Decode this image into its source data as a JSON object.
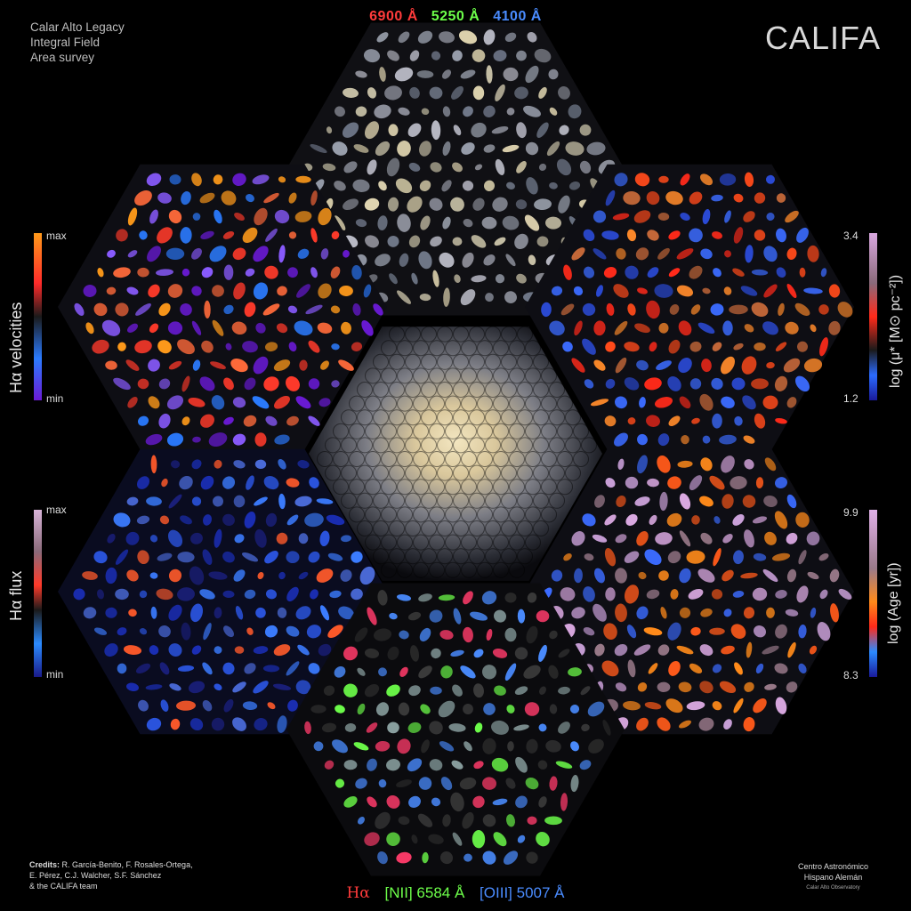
{
  "survey": {
    "lines": [
      "Calar Alto Legacy",
      "Integral Field",
      "Area survey"
    ]
  },
  "brand": "CALIFA",
  "wavelengths": [
    {
      "label": "6900 Å",
      "color": "#ff3b3b"
    },
    {
      "label": "5250 Å",
      "color": "#6dff4a"
    },
    {
      "label": "4100 Å",
      "color": "#4a8cff"
    }
  ],
  "emission_lines": [
    {
      "label": "Hα",
      "color": "#ff3b3b"
    },
    {
      "label": "[NII] 6584 Å",
      "color": "#6dff4a"
    },
    {
      "label": "[OIII] 5007 Å",
      "color": "#4a8cff"
    }
  ],
  "colorbars": {
    "velocities": {
      "label": "Hα velocities",
      "max": "max",
      "min": "min"
    },
    "flux": {
      "label": "Hα flux",
      "max": "max",
      "min": "min"
    },
    "mass": {
      "label": "log (μ* [M⊙ pc⁻²])",
      "max": "3.4",
      "min": "1.2"
    },
    "age": {
      "label": "log (Age [yr])",
      "max": "9.9",
      "min": "8.3"
    }
  },
  "credits": {
    "prefix": "Credits:",
    "line1": " R. García-Benito, F. Rosales-Ortega,",
    "line2": "E. Pérez, C.J. Walcher, S.F. Sánchez",
    "line3": "& the CALIFA team"
  },
  "institution": {
    "line1": "Centro Astronómico",
    "line2": "Hispano Alemán",
    "line3": "Calar Alto Observatory"
  }
}
